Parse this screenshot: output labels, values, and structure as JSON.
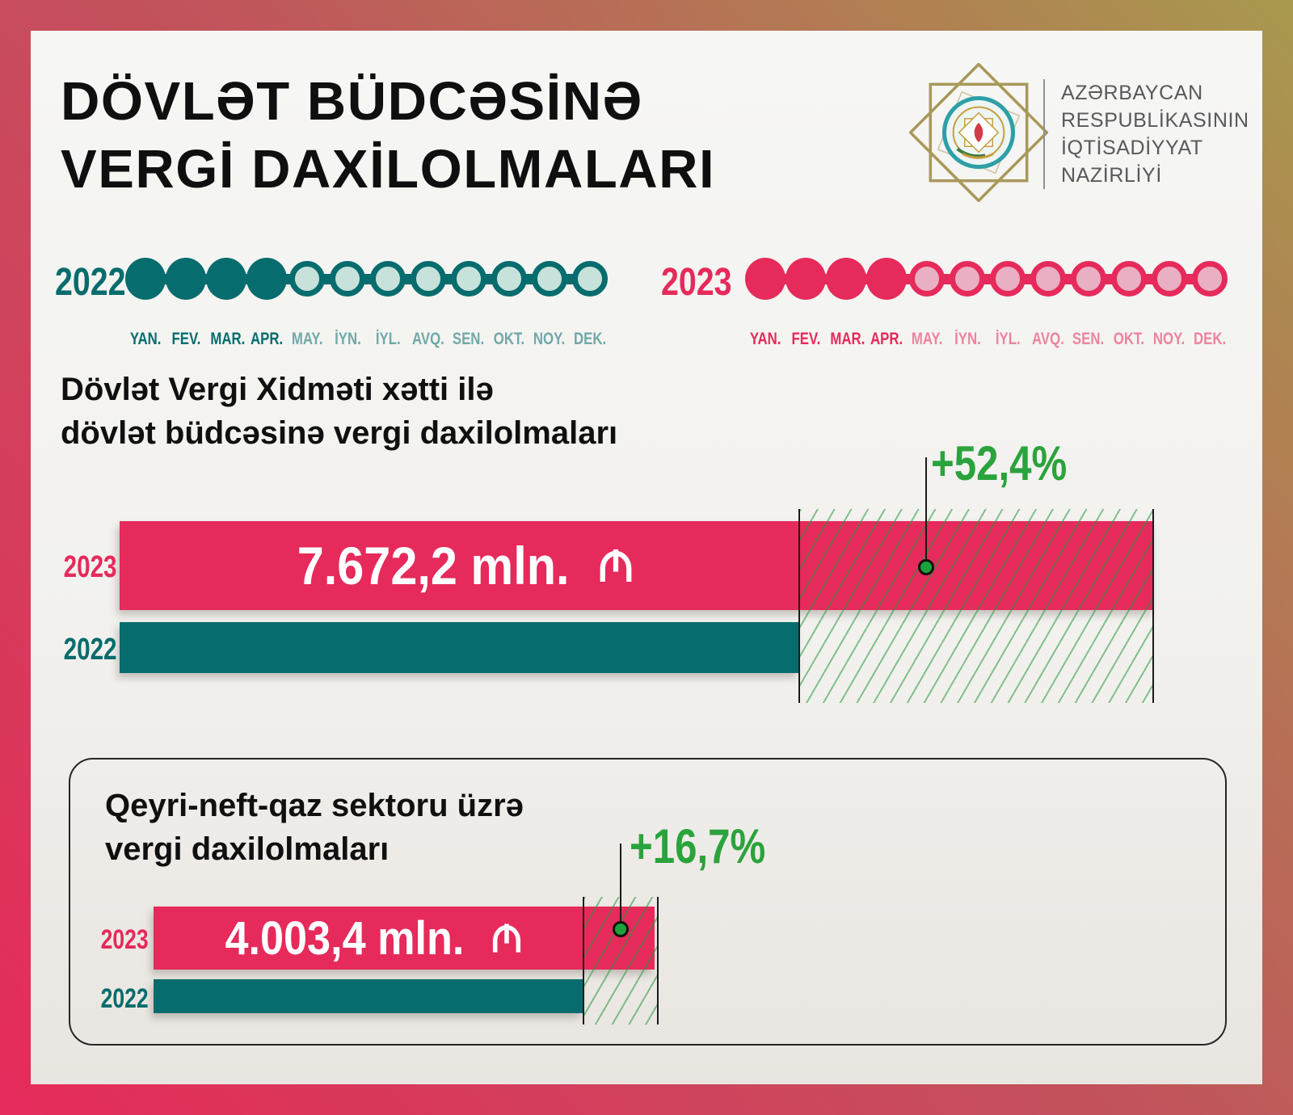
{
  "colors": {
    "pink": "#E62A5B",
    "teal": "#076C6D",
    "green": "#2BA33C",
    "gold": "#A8995B",
    "title_black": "#0F0F0F"
  },
  "header": {
    "title_line1": "DÖVLƏT BÜDCƏSİNƏ",
    "title_line2": "VERGİ DAXİLOLMALARI"
  },
  "ministry": {
    "name_lines": [
      "AZƏRBAYCAN",
      "RESPUBLİKASININ",
      "İQTİSADİYYAT",
      "NAZİRLİYİ"
    ]
  },
  "months": [
    "YAN.",
    "FEV.",
    "MAR.",
    "APR.",
    "MAY.",
    "İYN.",
    "İYL.",
    "AVQ.",
    "SEN.",
    "OKT.",
    "NOY.",
    "DEK."
  ],
  "timelines": [
    {
      "year": "2022",
      "active_months": 4
    },
    {
      "year": "2023",
      "active_months": 4
    }
  ],
  "sections": [
    {
      "title_line1": "Dövlət Vergi Xidməti xətti ilə",
      "title_line2": "dövlət büdcəsinə vergi daxilolmaları"
    },
    {
      "title_line1": "Qeyri-neft-qaz sektoru üzrə",
      "title_line2": "vergi daxilolmaları"
    }
  ],
  "chart_data": [
    {
      "type": "bar",
      "title": "Dövlət Vergi Xidməti xətti ilə dövlət büdcəsinə vergi daxilolmaları",
      "unit": "mln. AZN",
      "categories": [
        "2023",
        "2022"
      ],
      "series": [
        {
          "name": "2023",
          "value": 7672.2,
          "value_label": "7.672,2 mln.",
          "currency_symbol": "₼",
          "color": "#E62A5B"
        },
        {
          "name": "2022",
          "value_label": "",
          "color": "#076C6D"
        }
      ],
      "growth_label": "+52,4%",
      "growth_percent": 52.4,
      "legend_position": "none",
      "grid": false
    },
    {
      "type": "bar",
      "title": "Qeyri-neft-qaz sektoru üzrə vergi daxilolmaları",
      "unit": "mln. AZN",
      "categories": [
        "2023",
        "2022"
      ],
      "series": [
        {
          "name": "2023",
          "value": 4003.4,
          "value_label": "4.003,4 mln.",
          "currency_symbol": "₼",
          "color": "#E62A5B"
        },
        {
          "name": "2022",
          "value_label": "",
          "color": "#076C6D"
        }
      ],
      "growth_label": "+16,7%",
      "growth_percent": 16.7,
      "legend_position": "none",
      "grid": false
    }
  ]
}
